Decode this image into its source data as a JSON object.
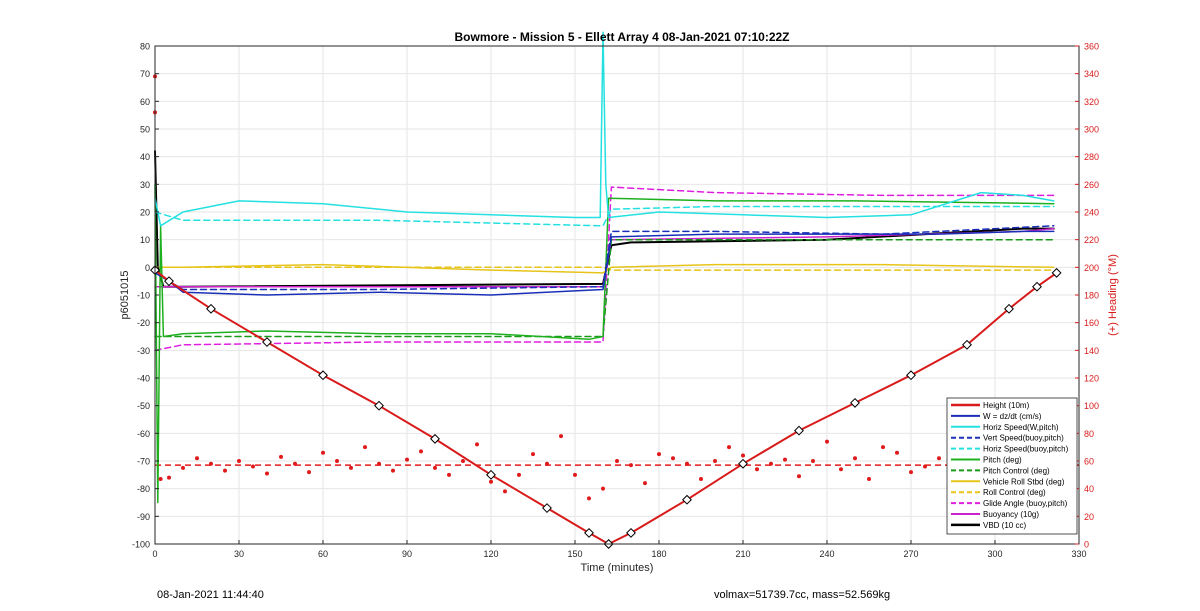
{
  "chart_data": {
    "type": "line",
    "title": "Bowmore - Mission 5 - Ellett Array 4 08-Jan-2021 07:10:22Z",
    "xlabel": "Time (minutes)",
    "ylabel_left": "p6051015",
    "ylabel_right": "(+) Heading (°M)",
    "xlim": [
      0,
      330
    ],
    "ylim_left": [
      -100,
      80
    ],
    "ylim_right": [
      0,
      360
    ],
    "xticks": [
      0,
      30,
      60,
      90,
      120,
      150,
      180,
      210,
      240,
      270,
      300,
      330
    ],
    "yticks_left": [
      80,
      70,
      60,
      50,
      40,
      30,
      20,
      10,
      0,
      -10,
      -20,
      -30,
      -40,
      -50,
      -60,
      -70,
      -80,
      -90,
      -100
    ],
    "yticks_right": [
      360,
      340,
      320,
      300,
      280,
      260,
      240,
      220,
      200,
      180,
      160,
      140,
      120,
      100,
      80,
      60,
      40,
      20,
      0
    ],
    "grid": true,
    "legend_position": "bottom-right",
    "series": [
      {
        "name": "Height (10m)",
        "color": "#d91a1a",
        "style": "solid",
        "width": 2,
        "x": [
          0,
          5,
          20,
          40,
          60,
          80,
          100,
          120,
          140,
          155,
          162,
          170,
          190,
          210,
          230,
          250,
          270,
          290,
          305,
          315,
          322
        ],
        "y": [
          -1,
          -5,
          -15,
          -27,
          -39,
          -50,
          -62,
          -75,
          -87,
          -96,
          -100,
          -96,
          -84,
          -71,
          -59,
          -49,
          -39,
          -28,
          -15,
          -7,
          -2
        ]
      },
      {
        "name": "W = dz/dt (cm/s)",
        "color": "#1a2fb8",
        "style": "solid",
        "width": 1.5,
        "x": [
          0,
          10,
          40,
          80,
          120,
          160,
          163,
          200,
          240,
          280,
          310,
          321
        ],
        "y": [
          -1,
          -9,
          -10,
          -9,
          -10,
          -8,
          11,
          12,
          12,
          12,
          13,
          13
        ]
      },
      {
        "name": "Horiz Speed(W,pitch)",
        "color": "#24e0e0",
        "style": "solid",
        "width": 1.5,
        "x": [
          0,
          2,
          10,
          30,
          60,
          90,
          120,
          150,
          159,
          160,
          161,
          162,
          180,
          210,
          240,
          270,
          295,
          310,
          321
        ],
        "y": [
          25,
          15,
          20,
          24,
          23,
          20,
          19,
          18,
          18,
          85,
          30,
          18,
          20,
          19,
          18,
          19,
          27,
          26,
          24
        ]
      },
      {
        "name": "Vert Speed(buoy,pitch)",
        "color": "#1a2fb8",
        "style": "dashed",
        "width": 1.5,
        "x": [
          0,
          10,
          80,
          160,
          163,
          200,
          260,
          321
        ],
        "y": [
          -2,
          -8,
          -8,
          -7,
          13,
          13,
          12,
          15
        ]
      },
      {
        "name": "Horiz Speed(buoy,pitch)",
        "color": "#24e0e0",
        "style": "dashed",
        "width": 1.5,
        "x": [
          0,
          10,
          80,
          160,
          163,
          200,
          260,
          321
        ],
        "y": [
          20,
          17,
          17,
          15,
          21,
          22,
          22,
          22
        ]
      },
      {
        "name": "Pitch (deg)",
        "color": "#1fb01f",
        "style": "solid",
        "width": 1.5,
        "x": [
          0,
          1,
          2,
          3,
          10,
          40,
          80,
          120,
          155,
          160,
          162,
          200,
          250,
          321
        ],
        "y": [
          30,
          -85,
          15,
          -25,
          -24,
          -23,
          -24,
          -24,
          -26,
          -25,
          25,
          24,
          24,
          23
        ]
      },
      {
        "name": "Pitch Control (deg)",
        "color": "#1a9a1a",
        "style": "dashed",
        "width": 1.5,
        "x": [
          0,
          10,
          160,
          163,
          240,
          321
        ],
        "y": [
          -25,
          -25,
          -25,
          10,
          10,
          10
        ]
      },
      {
        "name": "Vehicle Roll Stbd (deg)",
        "color": "#e6c41a",
        "style": "solid",
        "width": 1.5,
        "x": [
          0,
          10,
          60,
          120,
          160,
          163,
          200,
          260,
          321
        ],
        "y": [
          0,
          0,
          1,
          -1,
          -2,
          0,
          1,
          1,
          0
        ]
      },
      {
        "name": "Roll Control (deg)",
        "color": "#e6c41a",
        "style": "dashed",
        "width": 1.5,
        "x": [
          0,
          10,
          160,
          163,
          321
        ],
        "y": [
          0,
          0,
          0,
          -1,
          -1
        ]
      },
      {
        "name": "Glide Angle (buoy,pitch)",
        "color": "#e01ee0",
        "style": "dashed",
        "width": 1.5,
        "x": [
          0,
          10,
          80,
          160,
          163,
          200,
          260,
          321
        ],
        "y": [
          -30,
          -28,
          -27,
          -27,
          29,
          27,
          26,
          26
        ]
      },
      {
        "name": "Buoyancy (10g)",
        "color": "#cc22cc",
        "style": "solid",
        "width": 1.5,
        "x": [
          0,
          10,
          160,
          163,
          240,
          310,
          321
        ],
        "y": [
          -7,
          -7,
          -7,
          10,
          11,
          13,
          14
        ]
      },
      {
        "name": "VBD (10 cc)",
        "color": "#000000",
        "style": "solid",
        "width": 2,
        "x": [
          0,
          1,
          3,
          10,
          160,
          163,
          170,
          240,
          310,
          321
        ],
        "y": [
          42,
          0,
          -7,
          -7,
          -6,
          8,
          9,
          10,
          14,
          14
        ]
      }
    ],
    "heading_scatter": {
      "color": "#e01a1a",
      "axis": "right",
      "reference_line": 57,
      "points": [
        [
          0,
          338
        ],
        [
          0,
          312
        ],
        [
          2,
          47
        ],
        [
          5,
          48
        ],
        [
          10,
          55
        ],
        [
          15,
          62
        ],
        [
          20,
          58
        ],
        [
          25,
          53
        ],
        [
          30,
          60
        ],
        [
          35,
          56
        ],
        [
          40,
          51
        ],
        [
          45,
          63
        ],
        [
          50,
          58
        ],
        [
          55,
          52
        ],
        [
          60,
          66
        ],
        [
          65,
          60
        ],
        [
          70,
          55
        ],
        [
          75,
          70
        ],
        [
          80,
          58
        ],
        [
          85,
          53
        ],
        [
          90,
          61
        ],
        [
          95,
          67
        ],
        [
          100,
          55
        ],
        [
          105,
          50
        ],
        [
          110,
          60
        ],
        [
          115,
          72
        ],
        [
          120,
          45
        ],
        [
          125,
          38
        ],
        [
          130,
          50
        ],
        [
          135,
          65
        ],
        [
          140,
          58
        ],
        [
          145,
          78
        ],
        [
          150,
          50
        ],
        [
          155,
          33
        ],
        [
          160,
          40
        ],
        [
          165,
          60
        ],
        [
          170,
          57
        ],
        [
          175,
          44
        ],
        [
          180,
          65
        ],
        [
          185,
          62
        ],
        [
          190,
          58
        ],
        [
          195,
          47
        ],
        [
          200,
          60
        ],
        [
          205,
          70
        ],
        [
          210,
          64
        ],
        [
          215,
          54
        ],
        [
          220,
          58
        ],
        [
          225,
          61
        ],
        [
          230,
          49
        ],
        [
          235,
          60
        ],
        [
          240,
          74
        ],
        [
          245,
          54
        ],
        [
          250,
          62
        ],
        [
          255,
          47
        ],
        [
          260,
          70
        ],
        [
          265,
          66
        ],
        [
          270,
          52
        ],
        [
          275,
          56
        ],
        [
          280,
          62
        ],
        [
          285,
          58
        ],
        [
          290,
          52
        ],
        [
          295,
          57
        ],
        [
          300,
          55
        ],
        [
          305,
          50
        ],
        [
          310,
          46
        ],
        [
          315,
          52
        ],
        [
          320,
          44
        ]
      ]
    }
  },
  "footer": {
    "timestamp": "08-Jan-2021 11:44:40",
    "stats": "volmax=51739.7cc, mass=52.569kg"
  }
}
